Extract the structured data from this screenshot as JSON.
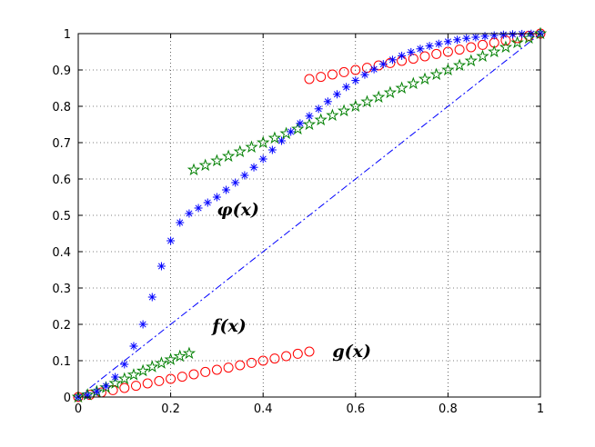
{
  "chart_data": {
    "type": "scatter",
    "title": "",
    "xlabel": "",
    "ylabel": "",
    "xlim": [
      0,
      1
    ],
    "ylim": [
      0,
      1
    ],
    "grid": "dotted",
    "x_ticks": [
      "0",
      "0.2",
      "0.4",
      "0.6",
      "0.8",
      "1"
    ],
    "y_ticks": [
      "0",
      "0.1",
      "0.2",
      "0.3",
      "0.4",
      "0.5",
      "0.6",
      "0.7",
      "0.8",
      "0.9",
      "1"
    ],
    "reference_line": {
      "style": "dash-dot",
      "color": "#0000ff",
      "from": [
        0,
        0
      ],
      "to": [
        1,
        1
      ]
    },
    "annotations": [
      {
        "text": "φ(x)",
        "x": 0.3,
        "y": 0.5
      },
      {
        "text": "f(x)",
        "x": 0.29,
        "y": 0.18
      },
      {
        "text": "g(x)",
        "x": 0.55,
        "y": 0.11
      }
    ],
    "series": [
      {
        "label": "φ(x)",
        "marker": "asterisk",
        "color": "#0000ff",
        "segments": [
          {
            "x": [
              0.0,
              0.02,
              0.04,
              0.06,
              0.08,
              0.1,
              0.12,
              0.14,
              0.16,
              0.18,
              0.2,
              0.22,
              0.24,
              0.26,
              0.28,
              0.3,
              0.32,
              0.34,
              0.36,
              0.38,
              0.4,
              0.42,
              0.44,
              0.46,
              0.48,
              0.5,
              0.52,
              0.54,
              0.56,
              0.58,
              0.6,
              0.62,
              0.64,
              0.66,
              0.68,
              0.7,
              0.72,
              0.74,
              0.76,
              0.78,
              0.8,
              0.82,
              0.84,
              0.86,
              0.88,
              0.9,
              0.92,
              0.94,
              0.96,
              0.98,
              1.0
            ],
            "y": [
              0.0,
              0.005,
              0.015,
              0.03,
              0.055,
              0.09,
              0.14,
              0.2,
              0.275,
              0.36,
              0.43,
              0.48,
              0.505,
              0.52,
              0.535,
              0.55,
              0.57,
              0.59,
              0.61,
              0.632,
              0.655,
              0.68,
              0.705,
              0.73,
              0.753,
              0.773,
              0.793,
              0.813,
              0.833,
              0.853,
              0.871,
              0.887,
              0.902,
              0.916,
              0.928,
              0.939,
              0.949,
              0.958,
              0.966,
              0.972,
              0.978,
              0.983,
              0.987,
              0.99,
              0.993,
              0.995,
              0.997,
              0.998,
              0.999,
              0.9995,
              1.0
            ]
          }
        ]
      },
      {
        "label": "f(x)",
        "marker": "pentagram",
        "color": "#007f00",
        "segments": [
          {
            "x": [
              0.0,
              0.02,
              0.04,
              0.06,
              0.08,
              0.1,
              0.12,
              0.14,
              0.16,
              0.18,
              0.2,
              0.22,
              0.24
            ],
            "y": [
              0.0,
              0.006,
              0.015,
              0.026,
              0.038,
              0.05,
              0.061,
              0.072,
              0.083,
              0.093,
              0.103,
              0.112,
              0.12
            ]
          },
          {
            "x": [
              0.25,
              0.275,
              0.3,
              0.325,
              0.35,
              0.375,
              0.4,
              0.425,
              0.45,
              0.475,
              0.5,
              0.525,
              0.55,
              0.575,
              0.6,
              0.625,
              0.65,
              0.675,
              0.7,
              0.725,
              0.75,
              0.775,
              0.8,
              0.825,
              0.85,
              0.875,
              0.9,
              0.925,
              0.95,
              0.975,
              1.0
            ],
            "y": [
              0.625,
              0.6375,
              0.65,
              0.6625,
              0.675,
              0.6875,
              0.7,
              0.7125,
              0.725,
              0.7375,
              0.75,
              0.7625,
              0.775,
              0.7875,
              0.8,
              0.8125,
              0.825,
              0.8375,
              0.85,
              0.8625,
              0.875,
              0.8875,
              0.9,
              0.9125,
              0.925,
              0.9375,
              0.95,
              0.9625,
              0.975,
              0.9875,
              1.0
            ]
          }
        ]
      },
      {
        "label": "g(x)",
        "marker": "circle",
        "color": "#ff0000",
        "segments": [
          {
            "x": [
              0.0,
              0.025,
              0.05,
              0.075,
              0.1,
              0.125,
              0.15,
              0.175,
              0.2,
              0.225,
              0.25,
              0.275,
              0.3,
              0.325,
              0.35,
              0.375,
              0.4,
              0.425,
              0.45,
              0.475,
              0.5
            ],
            "y": [
              0.0,
              0.006,
              0.0125,
              0.019,
              0.025,
              0.031,
              0.0375,
              0.044,
              0.05,
              0.056,
              0.0625,
              0.069,
              0.075,
              0.081,
              0.0875,
              0.094,
              0.1,
              0.106,
              0.1125,
              0.119,
              0.125
            ]
          },
          {
            "x": [
              0.5,
              0.525,
              0.55,
              0.575,
              0.6,
              0.625,
              0.65,
              0.675,
              0.7,
              0.725,
              0.75,
              0.775,
              0.8,
              0.825,
              0.85,
              0.875,
              0.9,
              0.925,
              0.95,
              0.975,
              1.0
            ],
            "y": [
              0.875,
              0.881,
              0.8875,
              0.894,
              0.9,
              0.906,
              0.9125,
              0.919,
              0.925,
              0.931,
              0.9375,
              0.944,
              0.95,
              0.956,
              0.9625,
              0.969,
              0.975,
              0.981,
              0.9875,
              0.994,
              1.0
            ]
          }
        ]
      }
    ]
  }
}
